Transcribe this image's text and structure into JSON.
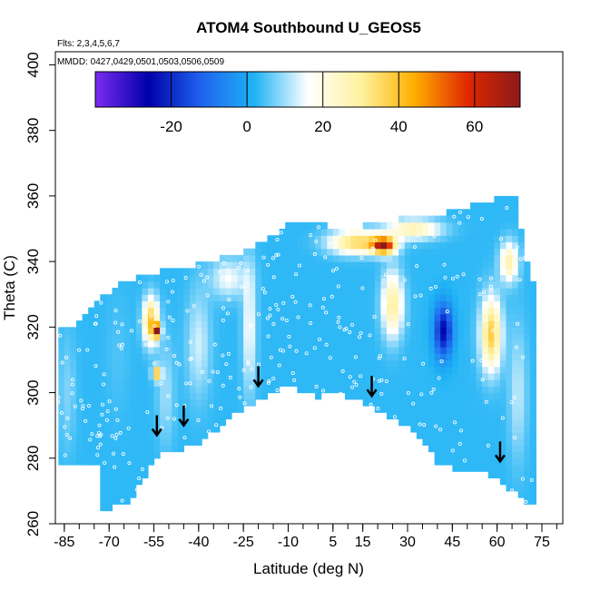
{
  "chart_data": {
    "type": "heatmap",
    "title": "ATOM4 Southbound U_GEOS5",
    "subtitle_flights": "Flts: 2,3,4,5,6,7",
    "subtitle_dates": "MMDD: 0427,0429,0501,0503,0506,0509",
    "xlabel": "Latitude (deg N)",
    "ylabel": "Theta (C)",
    "xlim": [
      -88,
      82
    ],
    "ylim": [
      260,
      404
    ],
    "xticks": [
      -85,
      -70,
      -55,
      -40,
      -25,
      -10,
      5,
      15,
      30,
      45,
      60,
      75
    ],
    "x_minor_step": 5,
    "yticks": [
      260,
      280,
      300,
      320,
      340,
      360,
      380,
      400
    ],
    "colorbar": {
      "range": [
        -40,
        72
      ],
      "ticks": [
        -20,
        0,
        20,
        40,
        60
      ],
      "colors": [
        "#7b2cf0",
        "#0000aa",
        "#1f63ee",
        "#1fb3f5",
        "#ffffff",
        "#fff2a0",
        "#ffb000",
        "#e02800",
        "#8c1a1a"
      ]
    },
    "arrows": [
      {
        "lat": -54,
        "theta": 287
      },
      {
        "lat": -45,
        "theta": 290
      },
      {
        "lat": -20,
        "theta": 302
      },
      {
        "lat": 18,
        "theta": 299
      },
      {
        "lat": 61,
        "theta": 279
      }
    ],
    "floor": {
      "lat": [
        -73,
        -70,
        -66,
        -62,
        -58,
        -54,
        -50,
        -45,
        -40,
        -35,
        -30,
        -25,
        -20,
        -15,
        -10,
        -5,
        0,
        5,
        10,
        15,
        20,
        25,
        30,
        35,
        40,
        45,
        50,
        55,
        60,
        65,
        70,
        73
      ],
      "theta": [
        265,
        265,
        266,
        268,
        275,
        280,
        283,
        283,
        285,
        288,
        292,
        295,
        298,
        300,
        302,
        300,
        299,
        300,
        299,
        297,
        295,
        292,
        290,
        285,
        279,
        277,
        277,
        276,
        274,
        270,
        266,
        265
      ]
    },
    "top": {
      "lat": [
        -87,
        -82,
        -78,
        -74,
        -70,
        -66,
        -62,
        -58,
        -54,
        -50,
        -46,
        -42,
        -38,
        -34,
        -30,
        -26,
        -22,
        -18,
        -14,
        -10,
        -6,
        -2,
        2,
        6,
        10,
        14,
        18,
        22,
        26,
        30,
        34,
        38,
        42,
        46,
        50,
        54,
        58,
        62,
        66,
        70,
        73
      ],
      "theta": [
        318,
        320,
        324,
        327,
        330,
        333,
        334,
        335,
        336,
        337,
        337,
        338,
        339,
        340,
        341,
        342,
        344,
        346,
        348,
        351,
        351,
        351,
        351,
        349,
        350,
        350,
        351,
        351,
        352,
        353,
        353,
        354,
        354,
        355,
        356,
        357,
        358,
        359,
        359,
        339,
        330
      ]
    },
    "blobs": [
      {
        "lat": -56,
        "theta": 322,
        "u": 40,
        "wlat": 2.5,
        "wth": 7
      },
      {
        "lat": -54,
        "theta": 319,
        "u": 60,
        "wlat": 1.3,
        "wth": 2
      },
      {
        "lat": -54,
        "theta": 306,
        "u": 42,
        "wlat": 1.4,
        "wth": 2
      },
      {
        "lat": -67,
        "theta": 312,
        "u": 5,
        "wlat": 4,
        "wth": 18
      },
      {
        "lat": -84,
        "theta": 300,
        "u": 8,
        "wlat": 3,
        "wth": 18
      },
      {
        "lat": -51,
        "theta": 300,
        "u": 10,
        "wlat": 3,
        "wth": 16
      },
      {
        "lat": -40,
        "theta": 315,
        "u": 13,
        "wlat": 4,
        "wth": 16
      },
      {
        "lat": -30,
        "theta": 335,
        "u": 16,
        "wlat": 6,
        "wth": 6
      },
      {
        "lat": -23,
        "theta": 320,
        "u": 17,
        "wlat": 2.2,
        "wth": 20
      },
      {
        "lat": 13,
        "theta": 346,
        "u": 36,
        "wlat": 9,
        "wth": 3.5
      },
      {
        "lat": 22,
        "theta": 345,
        "u": 60,
        "wlat": 4,
        "wth": 2.5
      },
      {
        "lat": 25,
        "theta": 327,
        "u": 30,
        "wlat": 3.5,
        "wth": 10
      },
      {
        "lat": 32,
        "theta": 350,
        "u": 28,
        "wlat": 9,
        "wth": 3
      },
      {
        "lat": 42,
        "theta": 319,
        "u": -25,
        "wlat": 3,
        "wth": 8
      },
      {
        "lat": 58,
        "theta": 318,
        "u": 38,
        "wlat": 3.5,
        "wth": 11
      },
      {
        "lat": 64,
        "theta": 340,
        "u": 28,
        "wlat": 3,
        "wth": 6
      },
      {
        "lat": 67,
        "theta": 300,
        "u": 12,
        "wlat": 3,
        "wth": 20
      }
    ],
    "background_u": 3
  }
}
